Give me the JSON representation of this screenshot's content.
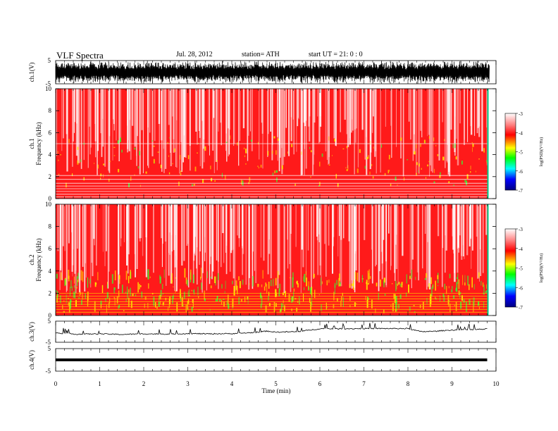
{
  "header": {
    "title": "VLF  Spectra",
    "date": "Jul.  28, 2012",
    "station": "station= ATH",
    "start": "start  UT  =    21: 0   : 0"
  },
  "colors": {
    "spectrogram_high": "#ff0000",
    "spectrogram_low": "#ffffff",
    "mid_yellow": "#ffff00",
    "mid_green": "#00ff00"
  },
  "chart_data": [
    {
      "type": "line",
      "panel": "ch1-waveform",
      "ylabel": "ch.1(V)",
      "yticks": [
        "5",
        "-5"
      ],
      "ylim": [
        -5,
        5
      ],
      "xlim": [
        0,
        10
      ],
      "description_of_values": "dense oscillating waveform filling most of the range",
      "series": [
        {
          "values": "approx ±4 V noise, full-band"
        }
      ]
    },
    {
      "type": "heatmap",
      "panel": "ch1-spectrogram",
      "ylabel_top": "ch.1",
      "ylabel": "Frequency (kHz)",
      "yticks": [
        "0",
        "2",
        "4",
        "6",
        "8",
        "10"
      ],
      "ylim": [
        0,
        10
      ],
      "xlim": [
        0,
        10
      ],
      "colorbar": {
        "label": "log(PSD)(V²/Hz)",
        "ticks": [
          "-3",
          "-4",
          "-5",
          "-6",
          "-7"
        ],
        "range": [
          -7,
          -3
        ]
      }
    },
    {
      "type": "heatmap",
      "panel": "ch2-spectrogram",
      "ylabel_top": "ch.2",
      "ylabel": "Frequency (kHz)",
      "yticks": [
        "0",
        "2",
        "4",
        "6",
        "8",
        "10"
      ],
      "ylim": [
        0,
        10
      ],
      "xlim": [
        0,
        10
      ],
      "colorbar": {
        "label": "log(PSD)(V²/Hz)",
        "ticks": [
          "-3",
          "-4",
          "-5",
          "-6",
          "-7"
        ],
        "range": [
          -7,
          -3
        ]
      }
    },
    {
      "type": "line",
      "panel": "ch3-trace",
      "ylabel": "ch.3(V)",
      "yticks": [
        "5",
        "-5"
      ],
      "ylim": [
        -5,
        5
      ],
      "xlim": [
        0,
        10
      ],
      "x": [
        0,
        0.5,
        1,
        1.5,
        2,
        2.5,
        3,
        3.5,
        4,
        4.5,
        4.8,
        5,
        5.5,
        6,
        6.5,
        7,
        7.5,
        8,
        8.3,
        8.6,
        9,
        9.5,
        9.8
      ],
      "values": [
        -0.5,
        -1.2,
        -1.0,
        -1.3,
        -1.0,
        -1.1,
        -0.9,
        -1.0,
        -0.9,
        -0.4,
        0.3,
        -0.2,
        0.0,
        1.4,
        1.4,
        1.5,
        1.5,
        1.5,
        0.0,
        0.2,
        0.8,
        1.0,
        1.3
      ]
    },
    {
      "type": "line",
      "panel": "ch4-trace",
      "ylabel": "ch.4(V)",
      "yticks": [
        "5",
        "-5"
      ],
      "ylim": [
        -5,
        5
      ],
      "xlim": [
        0,
        10
      ],
      "x": [
        0,
        9.8
      ],
      "values": [
        0,
        0
      ]
    }
  ],
  "xaxis": {
    "label": "Time  (min)",
    "ticks": [
      "0",
      "1",
      "2",
      "3",
      "4",
      "5",
      "6",
      "7",
      "8",
      "9",
      "10"
    ]
  }
}
